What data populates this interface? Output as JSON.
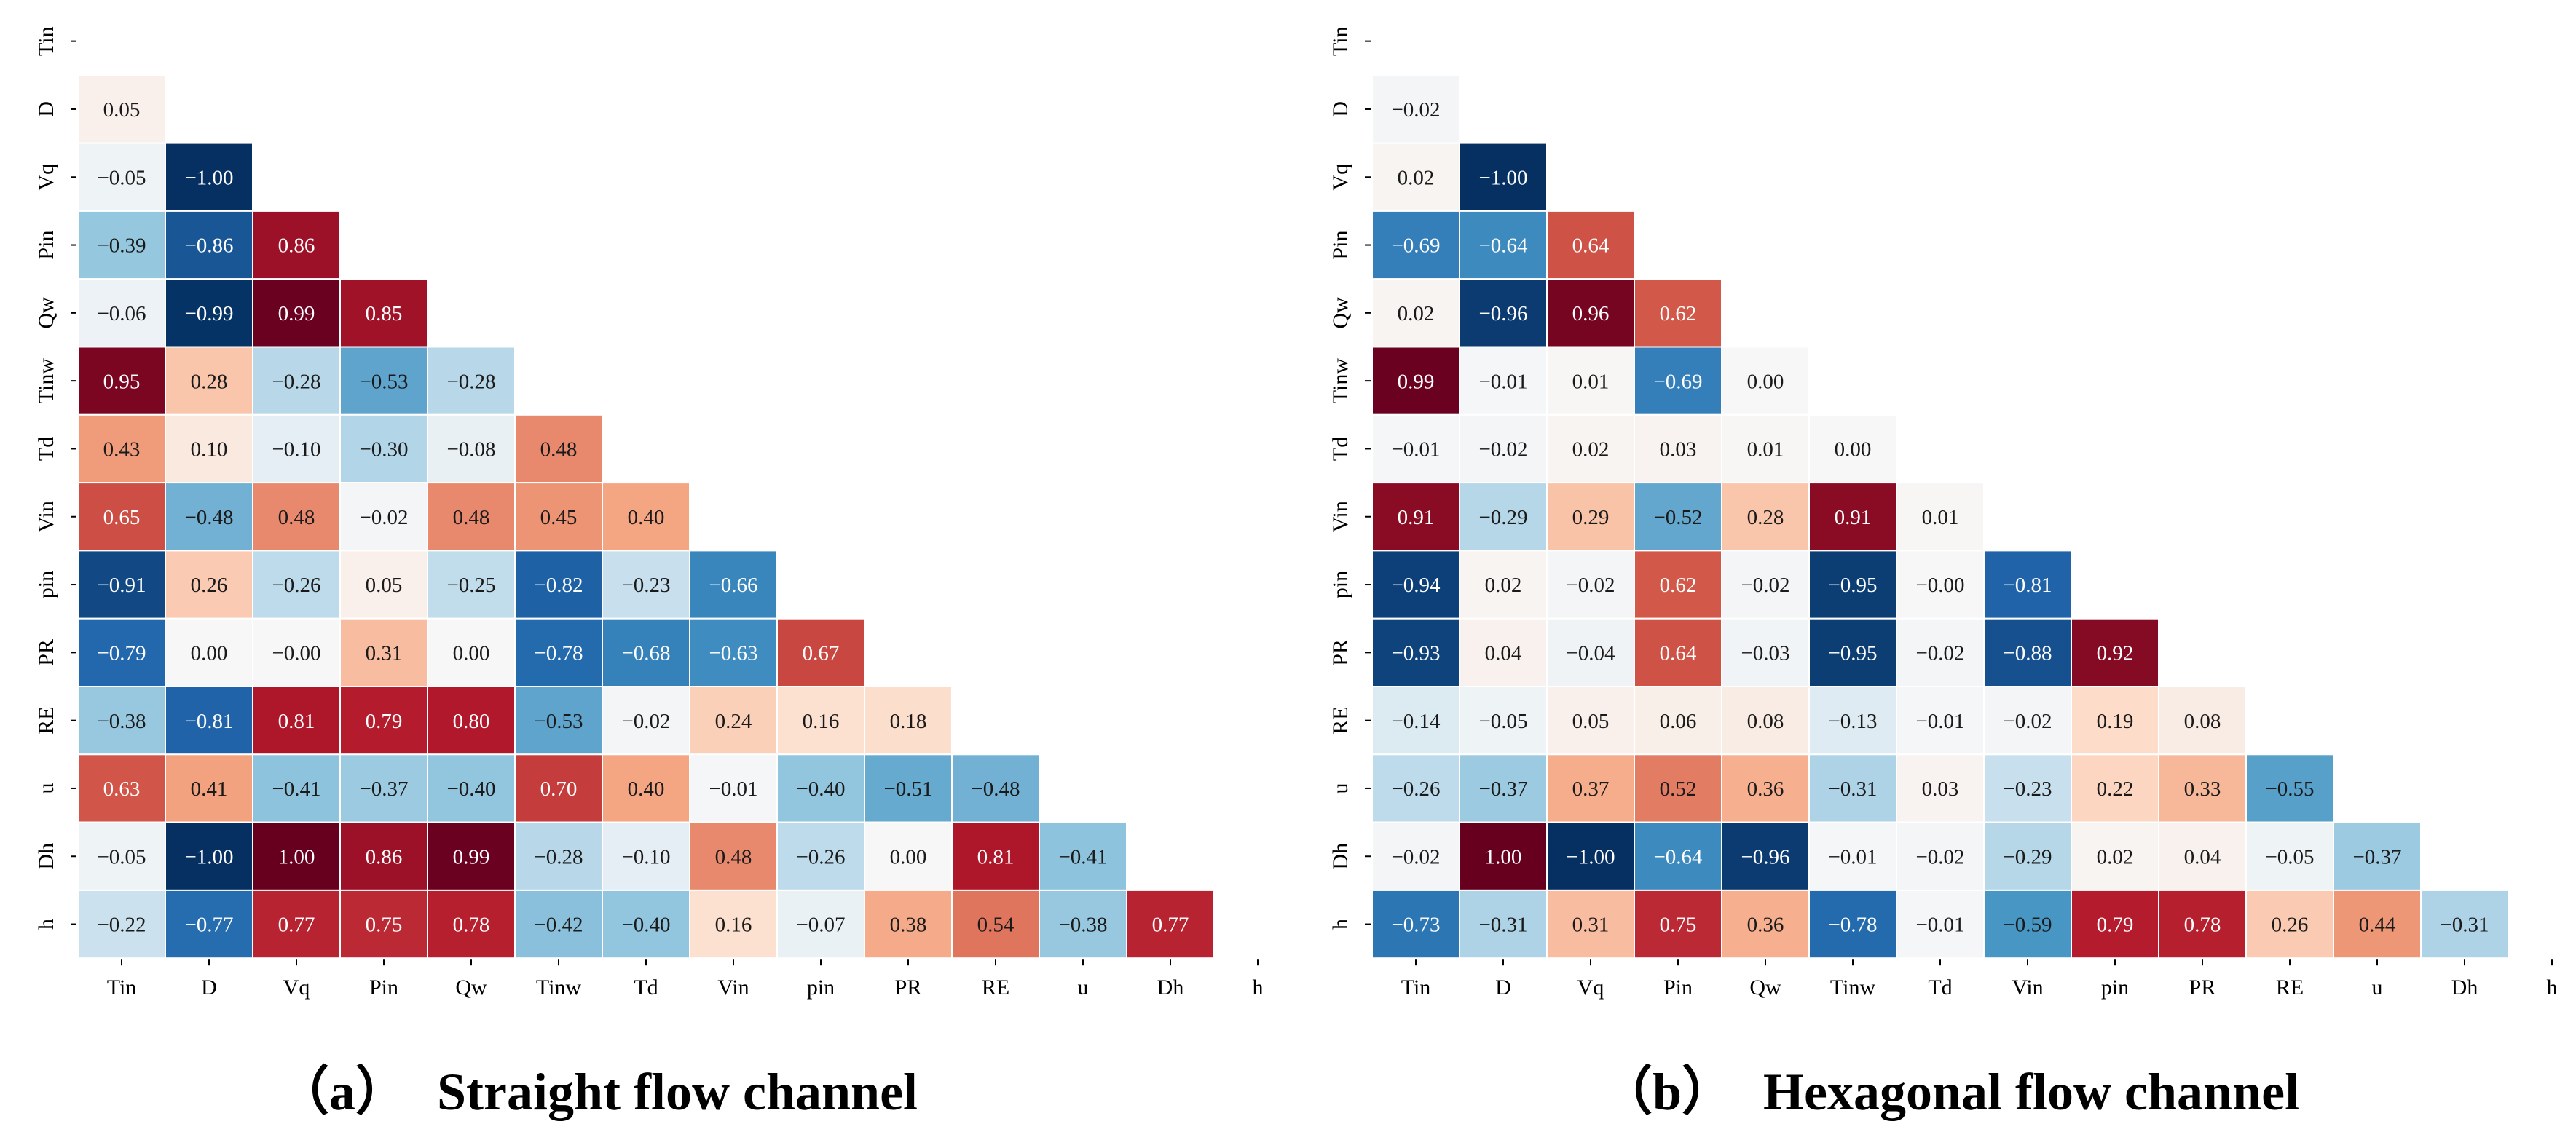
{
  "colormap": {
    "name": "RdBu_r",
    "stops": [
      "#053061",
      "#2166ac",
      "#4393c3",
      "#92c5de",
      "#d1e5f0",
      "#f7f7f7",
      "#fddbc7",
      "#f4a582",
      "#d6604d",
      "#b2182b",
      "#67001f"
    ],
    "range": [
      -1,
      1
    ]
  },
  "chart_data": [
    {
      "type": "heatmap",
      "title": "Straight flow channel",
      "panel_label": "（a）",
      "variables": [
        "Tin",
        "D",
        "Vq",
        "Pin",
        "Qw",
        "Tinw",
        "Td",
        "Vin",
        "pin",
        "PR",
        "RE",
        "u",
        "Dh",
        "h"
      ],
      "mask": "upper-triangle-including-diagonal",
      "lower_triangle": [
        [],
        [
          0.05
        ],
        [
          -0.05,
          -1.0
        ],
        [
          -0.39,
          -0.86,
          0.86
        ],
        [
          -0.06,
          -0.99,
          0.99,
          0.85
        ],
        [
          0.95,
          0.28,
          -0.28,
          -0.53,
          -0.28
        ],
        [
          0.43,
          0.1,
          -0.1,
          -0.3,
          -0.08,
          0.48
        ],
        [
          0.65,
          -0.48,
          0.48,
          -0.02,
          0.48,
          0.45,
          0.4
        ],
        [
          -0.91,
          0.26,
          -0.26,
          0.05,
          -0.25,
          -0.82,
          -0.23,
          -0.66
        ],
        [
          -0.79,
          0.0,
          -0.0,
          0.31,
          0.0,
          -0.78,
          -0.68,
          -0.63,
          0.67
        ],
        [
          -0.38,
          -0.81,
          0.81,
          0.79,
          0.8,
          -0.53,
          -0.02,
          0.24,
          0.16,
          0.18
        ],
        [
          0.63,
          0.41,
          -0.41,
          -0.37,
          -0.4,
          0.7,
          0.4,
          -0.01,
          -0.4,
          -0.51,
          -0.48
        ],
        [
          -0.05,
          -1.0,
          1.0,
          0.86,
          0.99,
          -0.28,
          -0.1,
          0.48,
          -0.26,
          0.0,
          0.81,
          -0.41
        ],
        [
          -0.22,
          -0.77,
          0.77,
          0.75,
          0.78,
          -0.42,
          -0.4,
          0.16,
          -0.07,
          0.38,
          0.54,
          -0.38,
          0.77
        ]
      ],
      "labels": [
        [],
        [
          "0.05"
        ],
        [
          "−0.05",
          "−1.00"
        ],
        [
          "−0.39",
          "−0.86",
          "0.86"
        ],
        [
          "−0.06",
          "−0.99",
          "0.99",
          "0.85"
        ],
        [
          "0.95",
          "0.28",
          "−0.28",
          "−0.53",
          "−0.28"
        ],
        [
          "0.43",
          "0.10",
          "−0.10",
          "−0.30",
          "−0.08",
          "0.48"
        ],
        [
          "0.65",
          "−0.48",
          "0.48",
          "−0.02",
          "0.48",
          "0.45",
          "0.40"
        ],
        [
          "−0.91",
          "0.26",
          "−0.26",
          "0.05",
          "−0.25",
          "−0.82",
          "−0.23",
          "−0.66"
        ],
        [
          "−0.79",
          "0.00",
          "−0.00",
          "0.31",
          "0.00",
          "−0.78",
          "−0.68",
          "−0.63",
          "0.67"
        ],
        [
          "−0.38",
          "−0.81",
          "0.81",
          "0.79",
          "0.80",
          "−0.53",
          "−0.02",
          "0.24",
          "0.16",
          "0.18"
        ],
        [
          "0.63",
          "0.41",
          "−0.41",
          "−0.37",
          "−0.40",
          "0.70",
          "0.40",
          "−0.01",
          "−0.40",
          "−0.51",
          "−0.48"
        ],
        [
          "−0.05",
          "−1.00",
          "1.00",
          "0.86",
          "0.99",
          "−0.28",
          "−0.10",
          "0.48",
          "−0.26",
          "0.00",
          "0.81",
          "−0.41"
        ],
        [
          "−0.22",
          "−0.77",
          "0.77",
          "0.75",
          "0.78",
          "−0.42",
          "−0.40",
          "0.16",
          "−0.07",
          "0.38",
          "0.54",
          "−0.38",
          "0.77"
        ]
      ]
    },
    {
      "type": "heatmap",
      "title": "Hexagonal flow channel",
      "panel_label": "（b）",
      "variables": [
        "Tin",
        "D",
        "Vq",
        "Pin",
        "Qw",
        "Tinw",
        "Td",
        "Vin",
        "pin",
        "PR",
        "RE",
        "u",
        "Dh",
        "h"
      ],
      "mask": "upper-triangle-including-diagonal",
      "lower_triangle": [
        [],
        [
          -0.02
        ],
        [
          0.02,
          -1.0
        ],
        [
          -0.69,
          -0.64,
          0.64
        ],
        [
          0.02,
          -0.96,
          0.96,
          0.62
        ],
        [
          0.99,
          -0.01,
          0.01,
          -0.69,
          0.0
        ],
        [
          -0.01,
          -0.02,
          0.02,
          0.03,
          0.01,
          0.0
        ],
        [
          0.91,
          -0.29,
          0.29,
          -0.52,
          0.28,
          0.91,
          0.01
        ],
        [
          -0.94,
          0.02,
          -0.02,
          0.62,
          -0.02,
          -0.95,
          -0.0,
          -0.81
        ],
        [
          -0.93,
          0.04,
          -0.04,
          0.64,
          -0.03,
          -0.95,
          -0.02,
          -0.88,
          0.92
        ],
        [
          -0.14,
          -0.05,
          0.05,
          0.06,
          0.08,
          -0.13,
          -0.01,
          -0.02,
          0.19,
          0.08
        ],
        [
          -0.26,
          -0.37,
          0.37,
          0.52,
          0.36,
          -0.31,
          0.03,
          -0.23,
          0.22,
          0.33,
          -0.55
        ],
        [
          -0.02,
          1.0,
          -1.0,
          -0.64,
          -0.96,
          -0.01,
          -0.02,
          -0.29,
          0.02,
          0.04,
          -0.05,
          -0.37
        ],
        [
          -0.73,
          -0.31,
          0.31,
          0.75,
          0.36,
          -0.78,
          -0.01,
          -0.59,
          0.79,
          0.78,
          0.26,
          0.44,
          -0.31
        ]
      ],
      "labels": [
        [],
        [
          "−0.02"
        ],
        [
          "0.02",
          "−1.00"
        ],
        [
          "−0.69",
          "−0.64",
          "0.64"
        ],
        [
          "0.02",
          "−0.96",
          "0.96",
          "0.62"
        ],
        [
          "0.99",
          "−0.01",
          "0.01",
          "−0.69",
          "0.00"
        ],
        [
          "−0.01",
          "−0.02",
          "0.02",
          "0.03",
          "0.01",
          "0.00"
        ],
        [
          "0.91",
          "−0.29",
          "0.29",
          "−0.52",
          "0.28",
          "0.91",
          "0.01"
        ],
        [
          "−0.94",
          "0.02",
          "−0.02",
          "0.62",
          "−0.02",
          "−0.95",
          "−0.00",
          "−0.81"
        ],
        [
          "−0.93",
          "0.04",
          "−0.04",
          "0.64",
          "−0.03",
          "−0.95",
          "−0.02",
          "−0.88",
          "0.92"
        ],
        [
          "−0.14",
          "−0.05",
          "0.05",
          "0.06",
          "0.08",
          "−0.13",
          "−0.01",
          "−0.02",
          "0.19",
          "0.08"
        ],
        [
          "−0.26",
          "−0.37",
          "0.37",
          "0.52",
          "0.36",
          "−0.31",
          "0.03",
          "−0.23",
          "0.22",
          "0.33",
          "−0.55"
        ],
        [
          "−0.02",
          "1.00",
          "−1.00",
          "−0.64",
          "−0.96",
          "−0.01",
          "−0.02",
          "−0.29",
          "0.02",
          "0.04",
          "−0.05",
          "−0.37"
        ],
        [
          "−0.73",
          "−0.31",
          "0.31",
          "0.75",
          "0.36",
          "−0.78",
          "−0.01",
          "−0.59",
          "0.79",
          "0.78",
          "0.26",
          "0.44",
          "−0.31"
        ]
      ]
    }
  ]
}
